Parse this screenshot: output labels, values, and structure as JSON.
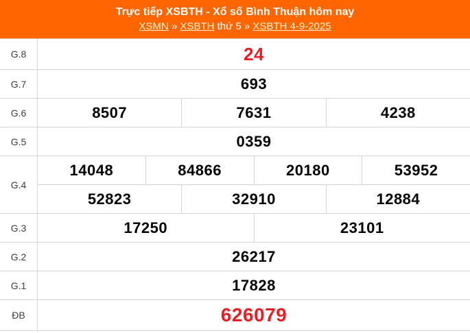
{
  "header": {
    "title": "Trực tiếp XSBTH - Xổ số Bình Thuận hôm nay",
    "breadcrumb": {
      "link_xsmn": "XSMN",
      "separator1": "»",
      "link_xsbth": "XSBTH",
      "day_label": "thứ 5",
      "separator2": "»",
      "link_date": "XSBTH 4-9-2025"
    }
  },
  "results": {
    "rows": [
      {
        "key": "g8",
        "label": "G.8",
        "highlight": true,
        "lines": [
          [
            "24"
          ]
        ]
      },
      {
        "key": "g7",
        "label": "G.7",
        "highlight": false,
        "lines": [
          [
            "693"
          ]
        ]
      },
      {
        "key": "g6",
        "label": "G.6",
        "highlight": false,
        "lines": [
          [
            "8507",
            "7631",
            "4238"
          ]
        ]
      },
      {
        "key": "g5",
        "label": "G.5",
        "highlight": false,
        "lines": [
          [
            "0359"
          ]
        ]
      },
      {
        "key": "g4",
        "label": "G.4",
        "highlight": false,
        "lines": [
          [
            "14048",
            "84866",
            "20180",
            "53952"
          ],
          [
            "52823",
            "32910",
            "12884"
          ]
        ]
      },
      {
        "key": "g3",
        "label": "G.3",
        "highlight": false,
        "lines": [
          [
            "17250",
            "23101"
          ]
        ]
      },
      {
        "key": "g2",
        "label": "G.2",
        "highlight": false,
        "lines": [
          [
            "26217"
          ]
        ]
      },
      {
        "key": "g1",
        "label": "G.1",
        "highlight": false,
        "lines": [
          [
            "17828"
          ]
        ]
      },
      {
        "key": "db",
        "label": "ĐB",
        "highlight": true,
        "lines": [
          [
            "626079"
          ]
        ]
      }
    ]
  },
  "colors": {
    "header_bg": "#FF6600",
    "highlight_red": "#ED1C24",
    "link_color": "#FFEFC8",
    "border": "#D8D4D1"
  }
}
